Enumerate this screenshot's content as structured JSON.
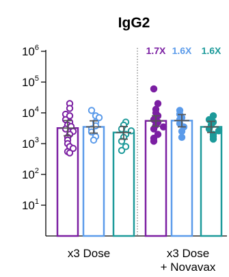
{
  "chart_data": {
    "type": "scatter",
    "title": "IgG2",
    "xlabel": "",
    "ylabel": "",
    "yscale": "log",
    "ylim": [
      1,
      1000000
    ],
    "yticks": [
      {
        "value": 10,
        "base": "10",
        "exp": "1"
      },
      {
        "value": 100,
        "base": "10",
        "exp": "2"
      },
      {
        "value": 1000,
        "base": "10",
        "exp": "3"
      },
      {
        "value": 10000,
        "base": "10",
        "exp": "4"
      },
      {
        "value": 100000,
        "base": "10",
        "exp": "5"
      },
      {
        "value": 1000000,
        "base": "10",
        "exp": "6"
      }
    ],
    "groups": [
      {
        "label_lines": [
          "x3 Dose"
        ]
      },
      {
        "label_lines": [
          "x3 Dose",
          "+ Novavax"
        ]
      }
    ],
    "fold_changes": [
      {
        "text": "1.7X",
        "color": "#7b1fa2"
      },
      {
        "text": "1.6X",
        "color": "#5b9bea"
      },
      {
        "text": "1.6X",
        "color": "#1d9a9a"
      }
    ],
    "bars": [
      {
        "group": 0,
        "color": "#7b1fa2",
        "filled": false,
        "mean": 3200,
        "err": [
          1800,
          5600
        ],
        "points": [
          20000,
          14000,
          9000,
          8000,
          6000,
          5000,
          4000,
          3600,
          3000,
          2500,
          2000,
          1600,
          1300,
          1000,
          800,
          700,
          550,
          500
        ]
      },
      {
        "group": 0,
        "color": "#5b9bea",
        "filled": false,
        "mean": 3500,
        "err": [
          2200,
          5500
        ],
        "points": [
          12000,
          8000,
          7000,
          5000,
          3800,
          3000,
          2400,
          1700,
          1300
        ]
      },
      {
        "group": 0,
        "color": "#1d9a9a",
        "filled": false,
        "mean": 2300,
        "err": [
          1400,
          3600
        ],
        "points": [
          5000,
          4000,
          3000,
          2600,
          2000,
          1600,
          1200,
          800,
          600
        ]
      },
      {
        "group": 1,
        "color": "#7b1fa2",
        "filled": true,
        "mean": 5500,
        "err": [
          3700,
          8000
        ],
        "points": [
          60000,
          20000,
          13000,
          10000,
          8000,
          6000,
          5000,
          4000,
          3500,
          3000,
          2000,
          1500,
          1200
        ]
      },
      {
        "group": 1,
        "color": "#5b9bea",
        "filled": true,
        "mean": 5600,
        "err": [
          3500,
          8800
        ],
        "points": [
          12000,
          9000,
          7000,
          6000,
          4500,
          3500,
          2500,
          1600
        ]
      },
      {
        "group": 1,
        "color": "#1d9a9a",
        "filled": true,
        "mean": 3500,
        "err": [
          2300,
          5300
        ],
        "points": [
          8000,
          6000,
          5000,
          4000,
          3000,
          2600,
          2000,
          1700,
          1400
        ]
      }
    ],
    "grid": false,
    "legend": "none"
  }
}
